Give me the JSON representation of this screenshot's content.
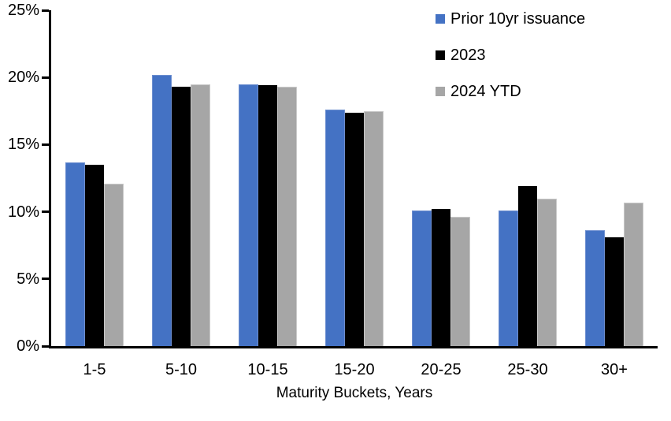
{
  "chart_data": {
    "type": "bar",
    "title": "",
    "xlabel": "Maturity Buckets, Years",
    "ylabel": "",
    "categories": [
      "1-5",
      "5-10",
      "10-15",
      "15-20",
      "20-25",
      "25-30",
      "30+"
    ],
    "series": [
      {
        "name": "Prior 10yr issuance",
        "color": "#4472C4",
        "border_color": "#6E8FD0",
        "values": [
          13.7,
          20.2,
          19.5,
          17.6,
          10.1,
          10.1,
          8.6
        ]
      },
      {
        "name": "2023",
        "color": "#000000",
        "border_color": "#000000",
        "values": [
          13.5,
          19.3,
          19.4,
          17.4,
          10.2,
          11.9,
          8.1
        ]
      },
      {
        "name": "2024 YTD",
        "color": "#A6A6A6",
        "border_color": "#C9C9C9",
        "values": [
          12.1,
          19.5,
          19.3,
          17.5,
          9.6,
          11.0,
          10.7
        ]
      }
    ],
    "y_axis": {
      "min": 0,
      "max": 25,
      "step": 5,
      "tick_labels": [
        "0%",
        "5%",
        "10%",
        "15%",
        "20%",
        "25%"
      ]
    },
    "ylim": [
      0,
      25
    ],
    "grid": false,
    "legend_position": "top-right",
    "axis_color": "#000000",
    "background_color": "#FFFFFF"
  }
}
